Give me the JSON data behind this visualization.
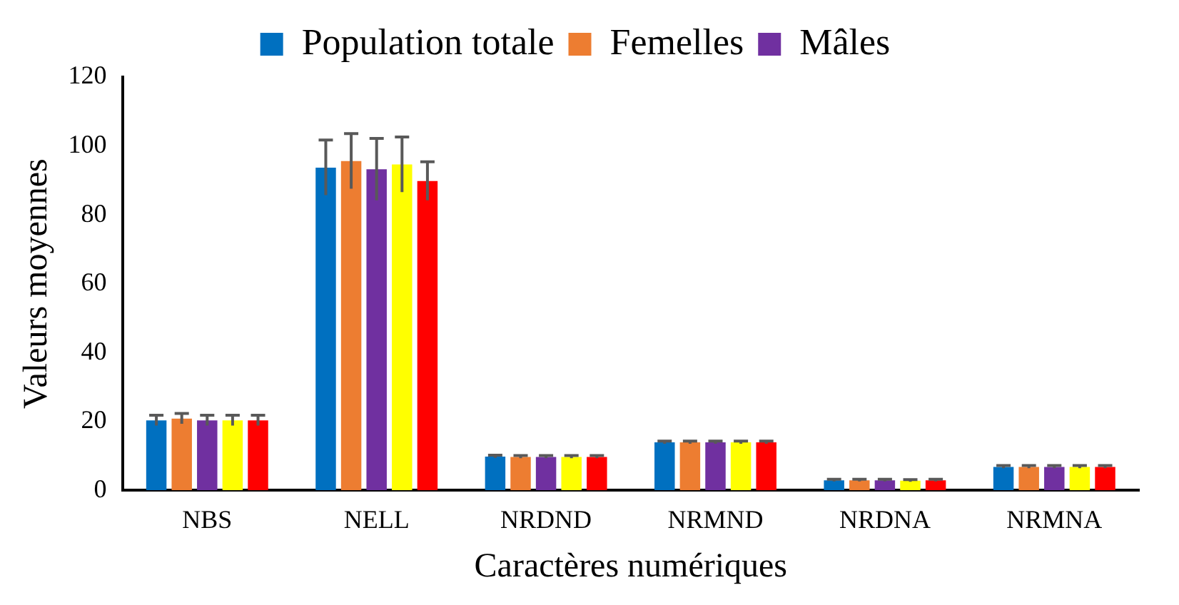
{
  "chart_data": {
    "type": "bar",
    "xlabel": "Caractères numériques",
    "ylabel": "Valeurs moyennes",
    "categories": [
      "NBS",
      "NELL",
      "NRDND",
      "NRMND",
      "NRDNA",
      "NRMNA"
    ],
    "series": [
      {
        "name": "Population totale",
        "color": "#0070c0",
        "values": [
          20.3,
          93.7,
          9.8,
          13.9,
          2.9,
          6.8
        ],
        "errors": [
          1.5,
          8,
          0.4,
          0.4,
          0.3,
          0.4
        ]
      },
      {
        "name": "Femelles",
        "color": "#ed7d31",
        "values": [
          20.8,
          95.6,
          9.7,
          13.9,
          2.9,
          6.8
        ],
        "errors": [
          1.5,
          8,
          0.4,
          0.4,
          0.3,
          0.4
        ]
      },
      {
        "name": "Mâles",
        "color": "#7030a0",
        "values": [
          20.3,
          93.2,
          9.7,
          13.9,
          2.9,
          6.8
        ],
        "errors": [
          1.5,
          9,
          0.4,
          0.4,
          0.3,
          0.4
        ]
      },
      {
        "color": "#ffff00",
        "values": [
          20.3,
          94.6,
          9.7,
          13.9,
          2.8,
          6.8
        ],
        "errors": [
          1.5,
          8,
          0.4,
          0.4,
          0.3,
          0.4
        ]
      },
      {
        "color": "#ff0000",
        "values": [
          20.3,
          89.8,
          9.7,
          13.9,
          2.9,
          6.8
        ],
        "errors": [
          1.5,
          5.6,
          0.4,
          0.4,
          0.3,
          0.4
        ]
      }
    ],
    "ylim": [
      0,
      120
    ],
    "yticks": [
      0,
      20,
      40,
      60,
      80,
      100,
      120
    ],
    "grid": false,
    "legend": "top"
  }
}
